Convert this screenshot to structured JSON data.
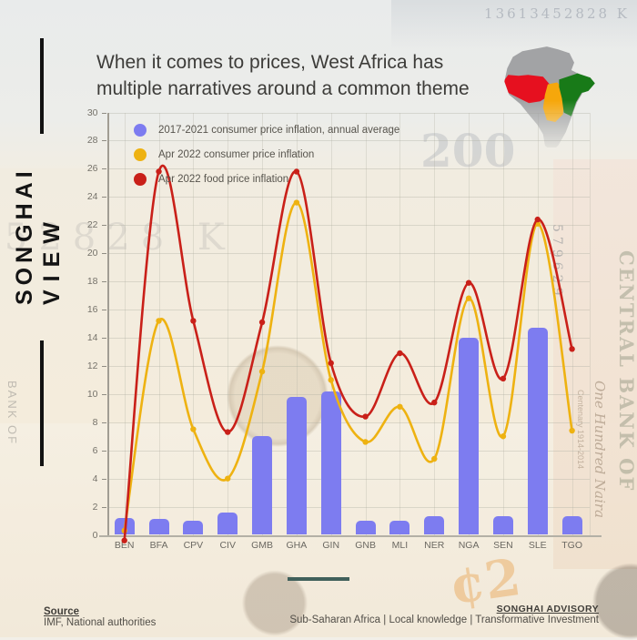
{
  "title": {
    "line1": "When it comes to prices, West Africa has",
    "line2": "multiple narratives around a common theme"
  },
  "branding": {
    "line1": "SONGHAI",
    "line2": "VIEW"
  },
  "footer": {
    "source_label": "Source",
    "source_value": "IMF, National authorities",
    "advisory_label": "SONGHAI ADVISORY",
    "advisory_tagline": "Sub-Saharan Africa | Local knowledge | Transformative Investment"
  },
  "background_texts": {
    "serial_top": "13613452828 K",
    "serial_watermark": "3452828 K",
    "denomination": "200",
    "serial_right": "579629",
    "central_bank": "CENTRAL BANK OF",
    "one_hundred": "One Hundred Naira",
    "centenary": "Centenary 1914-2014",
    "bank_of": "BANK OF",
    "cedi": "¢2"
  },
  "map": {
    "colors": {
      "base": "#a2a3a5",
      "west": "#e6101f",
      "central": "#f6a70b",
      "east": "#187a18"
    }
  },
  "chart_data": {
    "type": "bar",
    "title": "",
    "xlabel": "",
    "ylabel": "",
    "ylim": [
      0,
      30
    ],
    "ytick_step": 2,
    "grid": true,
    "legend_position": "top-left-inside",
    "categories": [
      "BEN",
      "BFA",
      "CPV",
      "CIV",
      "GMB",
      "GHA",
      "GIN",
      "GNB",
      "MLI",
      "NER",
      "NGA",
      "SEN",
      "SLE",
      "TGO"
    ],
    "series": [
      {
        "name": "2017-2021 consumer price inflation, annual average",
        "type": "bar",
        "color": "#7d7cf0",
        "values": [
          1.2,
          1.1,
          1.0,
          1.6,
          7.0,
          9.8,
          10.2,
          1.0,
          1.0,
          1.3,
          14.0,
          1.3,
          14.7,
          1.3
        ]
      },
      {
        "name": "Apr 2022 consumer price inflation",
        "type": "line",
        "color": "#eeb211",
        "values": [
          0.3,
          15.2,
          7.5,
          4.0,
          11.6,
          23.6,
          11.0,
          6.6,
          9.1,
          5.4,
          16.8,
          7.0,
          22.1,
          7.4
        ]
      },
      {
        "name": "Apr 2022 food price inflation",
        "type": "line",
        "color": "#c92019",
        "values": [
          -0.4,
          25.8,
          15.2,
          7.3,
          15.1,
          25.8,
          12.2,
          8.4,
          12.9,
          9.4,
          17.9,
          11.1,
          22.4,
          13.2
        ]
      }
    ]
  }
}
